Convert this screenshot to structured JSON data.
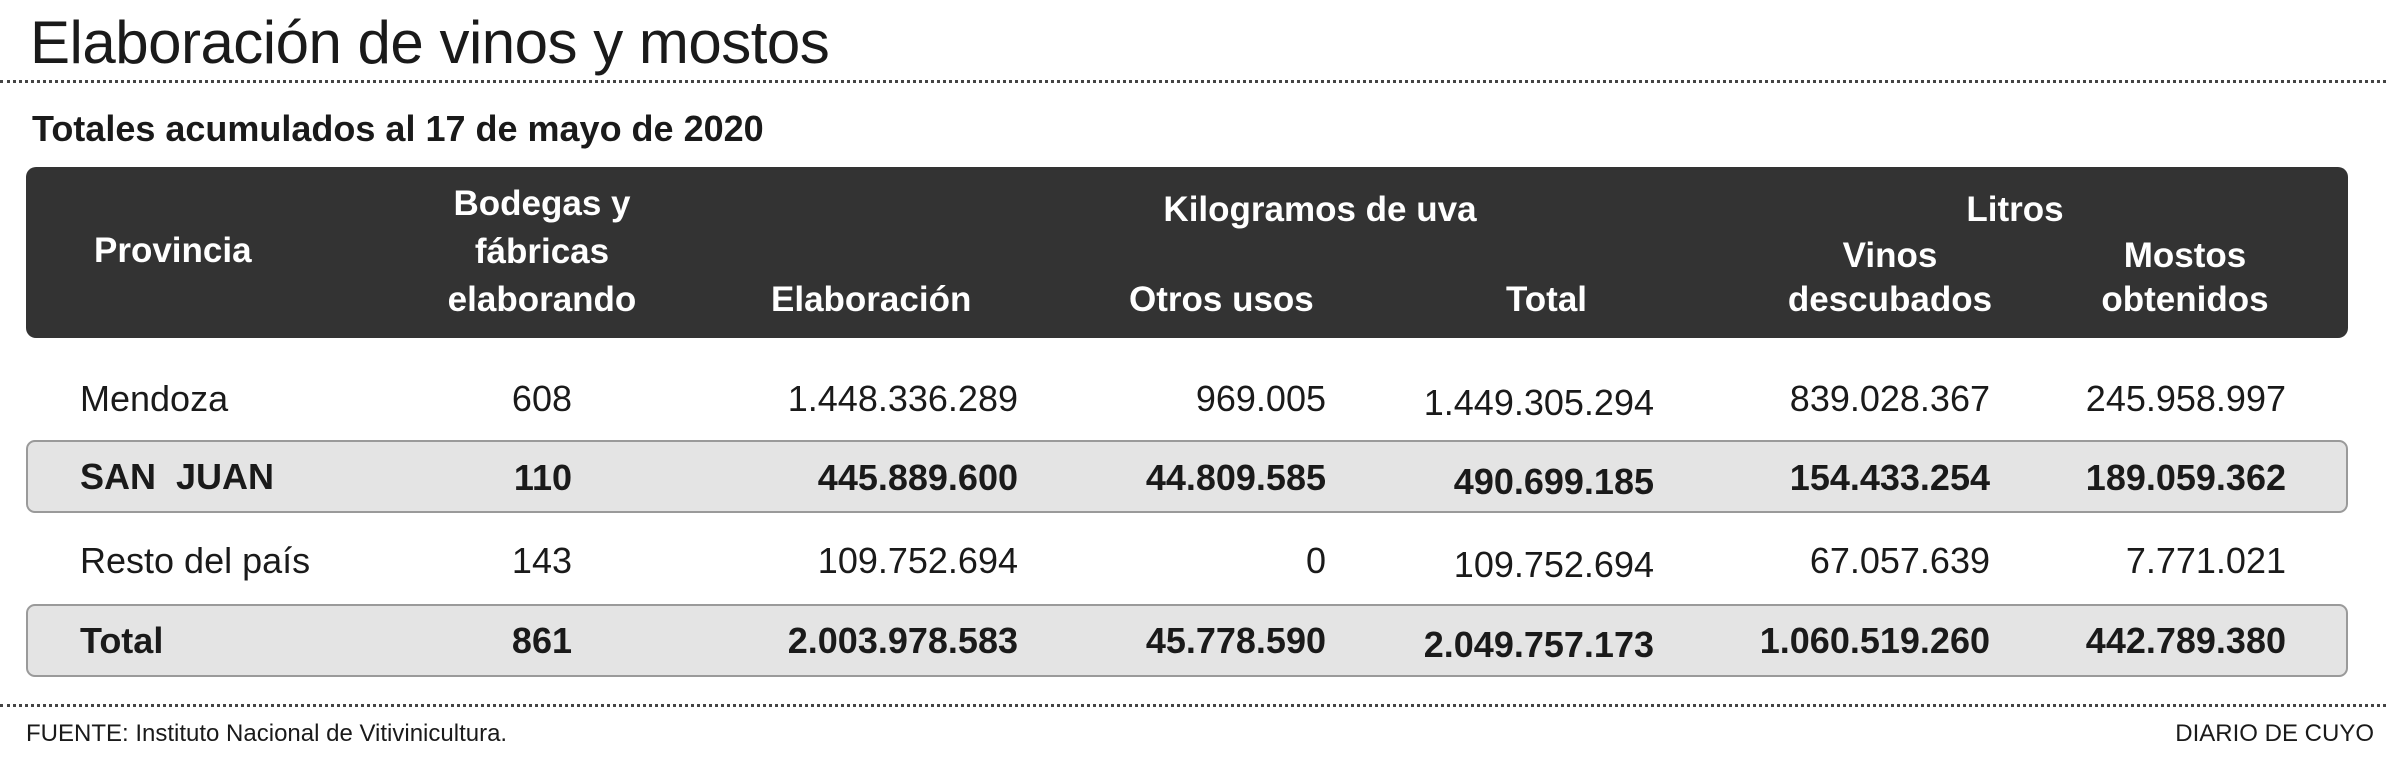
{
  "title": "Elaboración de vinos y mostos",
  "subtitle": "Totales acumulados al 17 de mayo de 2020",
  "header": {
    "provincia": "Provincia",
    "bodegas": [
      "Bodegas y",
      "fábricas",
      "elaborando"
    ],
    "kilogramos_group": "Kilogramos de uva",
    "elaboracion": "Elaboración",
    "otros_usos": "Otros usos",
    "total": "Total",
    "litros_group": "Litros",
    "vinos": [
      "Vinos",
      "descubados"
    ],
    "mostos": [
      "Mostos",
      "obtenidos"
    ]
  },
  "chart_data": {
    "type": "table",
    "title": "Elaboración de vinos y mostos",
    "subtitle": "Totales acumulados al 17 de mayo de 2020",
    "columns": [
      "Provincia",
      "Bodegas y fábricas elaborando",
      "Elaboración",
      "Otros usos",
      "Total",
      "Vinos descubados",
      "Mostos obtenidos"
    ],
    "column_groups": [
      {
        "name": "Kilogramos de uva",
        "columns": [
          "Elaboración",
          "Otros usos",
          "Total"
        ]
      },
      {
        "name": "Litros",
        "columns": [
          "Vinos descubados",
          "Mostos obtenidos"
        ]
      }
    ],
    "rows": [
      {
        "provincia": "Mendoza",
        "bodegas": "608",
        "elaboracion": "1.448.336.289",
        "otros": "969.005",
        "total": "1.449.305.294",
        "vinos": "839.028.367",
        "mostos": "245.958.997",
        "highlight": false
      },
      {
        "provincia": "SAN  JUAN",
        "bodegas": "110",
        "elaboracion": "445.889.600",
        "otros": "44.809.585",
        "total": "490.699.185",
        "vinos": "154.433.254",
        "mostos": "189.059.362",
        "highlight": true
      },
      {
        "provincia": "Resto del país",
        "bodegas": "143",
        "elaboracion": "109.752.694",
        "otros": "0",
        "total": "109.752.694",
        "vinos": "67.057.639",
        "mostos": "7.771.021",
        "highlight": false
      },
      {
        "provincia": "Total",
        "bodegas": "861",
        "elaboracion": "2.003.978.583",
        "otros": "45.778.590",
        "total": "2.049.757.173",
        "vinos": "1.060.519.260",
        "mostos": "442.789.380",
        "highlight": true
      }
    ]
  },
  "footer": {
    "source_label": "FUENTE:",
    "source_text": " Instituto Nacional de Vitivinicultura.",
    "brand": "DIARIO DE CUYO"
  },
  "colors": {
    "header_bg": "#333333",
    "band_bg": "#e4e4e4",
    "band_border": "#9a9a9a",
    "text": "#1a1a1a"
  }
}
